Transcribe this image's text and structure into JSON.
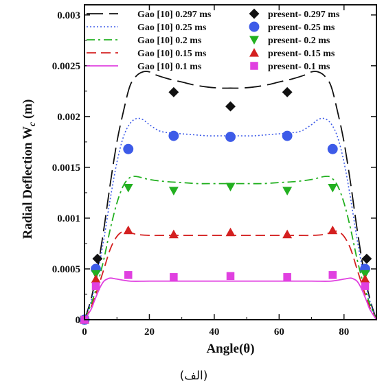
{
  "chart_data": {
    "type": "line",
    "xlabel": "Angle(θ)",
    "ylabel": "Radial Deflection W",
    "ylabel_sub": "c",
    "ylabel_unit": " (m)",
    "xlim": [
      0,
      90
    ],
    "ylim": [
      0,
      0.0031
    ],
    "x_ticks": [
      0,
      20,
      40,
      60,
      80
    ],
    "x_tick_labels": [
      "0",
      "20",
      "40",
      "60",
      "80"
    ],
    "y_ticks": [
      0,
      0.0005,
      0.001,
      0.0015,
      0.002,
      0.0025,
      0.003
    ],
    "y_tick_labels": [
      "0",
      "0.0005",
      "0.001",
      "0.0015",
      "0.002",
      "0.0025",
      "0.003"
    ],
    "grid": false,
    "legend_position": "top",
    "caption": "(الف)",
    "series": [
      {
        "name": "Gao [10] 0.297 ms",
        "kind": "line",
        "style": "long-dash",
        "color": "#111111",
        "x": [
          0,
          2,
          4,
          6,
          8,
          10,
          12,
          14,
          16,
          18,
          20,
          22,
          26,
          30,
          34,
          38,
          42,
          45,
          48,
          52,
          56,
          60,
          64,
          68,
          70,
          72,
          74,
          76,
          78,
          80,
          82,
          84,
          86,
          88,
          90
        ],
        "y": [
          0,
          0.0002,
          0.0005,
          0.0009,
          0.00135,
          0.00175,
          0.00205,
          0.0023,
          0.0024,
          0.00244,
          0.00244,
          0.00241,
          0.00237,
          0.00234,
          0.00231,
          0.00229,
          0.00228,
          0.00228,
          0.00228,
          0.00229,
          0.00231,
          0.00234,
          0.00237,
          0.00241,
          0.00244,
          0.00244,
          0.0024,
          0.0023,
          0.00205,
          0.00175,
          0.00135,
          0.0009,
          0.0005,
          0.0002,
          0
        ]
      },
      {
        "name": "Gao [10] 0.25 ms",
        "kind": "line",
        "style": "dotted",
        "color": "#3d5be8",
        "x": [
          0,
          2,
          4,
          6,
          8,
          10,
          12,
          14,
          16,
          18,
          20,
          23,
          26,
          30,
          34,
          38,
          42,
          45,
          48,
          52,
          56,
          60,
          64,
          67,
          70,
          72,
          74,
          76,
          78,
          80,
          82,
          84,
          86,
          88,
          90
        ],
        "y": [
          0,
          0.00018,
          0.00045,
          0.0008,
          0.0012,
          0.00155,
          0.0018,
          0.00193,
          0.00198,
          0.00197,
          0.00192,
          0.00186,
          0.00184,
          0.00183,
          0.00182,
          0.00181,
          0.00181,
          0.00181,
          0.00181,
          0.00181,
          0.00182,
          0.00183,
          0.00184,
          0.00186,
          0.00192,
          0.00197,
          0.00198,
          0.00193,
          0.0018,
          0.00155,
          0.0012,
          0.0008,
          0.00045,
          0.00018,
          0
        ]
      },
      {
        "name": "Gao [10] 0.2 ms",
        "kind": "line",
        "style": "dash-dot",
        "color": "#22b020",
        "x": [
          0,
          2,
          4,
          6,
          8,
          10,
          12,
          14,
          16,
          20,
          25,
          30,
          35,
          40,
          45,
          50,
          55,
          60,
          65,
          70,
          74,
          76,
          78,
          80,
          82,
          84,
          86,
          88,
          90
        ],
        "y": [
          0,
          0.00015,
          0.00035,
          0.0006,
          0.0009,
          0.00115,
          0.00132,
          0.0014,
          0.00141,
          0.00138,
          0.00136,
          0.00135,
          0.00134,
          0.00134,
          0.00134,
          0.00134,
          0.00134,
          0.00135,
          0.00136,
          0.00138,
          0.00141,
          0.0014,
          0.00132,
          0.00115,
          0.0009,
          0.0006,
          0.00035,
          0.00015,
          0
        ]
      },
      {
        "name": "Gao [10] 0.15 ms",
        "kind": "line",
        "style": "dash",
        "color": "#d42020",
        "x": [
          0,
          2,
          4,
          6,
          8,
          10,
          12,
          14,
          16,
          20,
          25,
          30,
          35,
          40,
          45,
          50,
          55,
          60,
          65,
          70,
          74,
          76,
          78,
          80,
          82,
          84,
          86,
          88,
          90
        ],
        "y": [
          0,
          0.00012,
          0.0003,
          0.0005,
          0.0007,
          0.00082,
          0.00087,
          0.00086,
          0.00084,
          0.00083,
          0.00083,
          0.00083,
          0.00083,
          0.00083,
          0.00083,
          0.00083,
          0.00083,
          0.00083,
          0.00083,
          0.00083,
          0.00084,
          0.00086,
          0.00087,
          0.00082,
          0.0007,
          0.0005,
          0.0003,
          0.00012,
          0
        ]
      },
      {
        "name": "Gao [10] 0.1 ms",
        "kind": "line",
        "style": "solid",
        "color": "#e040e0",
        "x": [
          0,
          2,
          3,
          4,
          5,
          6,
          7,
          8,
          10,
          14,
          20,
          30,
          40,
          45,
          50,
          60,
          70,
          76,
          80,
          82,
          83,
          84,
          85,
          86,
          87,
          88,
          90
        ],
        "y": [
          0,
          0.0001,
          0.00018,
          0.00026,
          0.00033,
          0.00038,
          0.0004,
          0.00041,
          0.0004,
          0.00038,
          0.00038,
          0.00038,
          0.00038,
          0.00038,
          0.00038,
          0.00038,
          0.00038,
          0.00038,
          0.0004,
          0.00041,
          0.0004,
          0.00038,
          0.00033,
          0.00026,
          0.00018,
          0.0001,
          0
        ]
      },
      {
        "name": "present- 0.297 ms",
        "kind": "marker",
        "marker": "diamond",
        "color": "#111111",
        "x": [
          0,
          4,
          27.5,
          45,
          62.5,
          87
        ],
        "y": [
          0,
          0.0006,
          0.00224,
          0.0021,
          0.00224,
          0.0006
        ]
      },
      {
        "name": "present- 0.25 ms",
        "kind": "marker",
        "marker": "circle",
        "color": "#3d5be8",
        "x": [
          0,
          3.5,
          13.5,
          27.5,
          45,
          62.5,
          76.5,
          86.5
        ],
        "y": [
          0,
          0.0005,
          0.00168,
          0.00181,
          0.0018,
          0.00181,
          0.00168,
          0.0005
        ]
      },
      {
        "name": "present- 0.2 ms",
        "kind": "marker",
        "marker": "triangle-down",
        "color": "#22b020",
        "x": [
          0,
          3.5,
          13.5,
          27.5,
          45,
          62.5,
          76.5,
          86.5
        ],
        "y": [
          0,
          0.00045,
          0.0013,
          0.00127,
          0.00131,
          0.00127,
          0.0013,
          0.00045
        ]
      },
      {
        "name": "present- 0.15 ms",
        "kind": "marker",
        "marker": "triangle-up",
        "color": "#d42020",
        "x": [
          0,
          3.5,
          13.5,
          27.5,
          45,
          62.5,
          76.5,
          86.5
        ],
        "y": [
          0,
          0.0004,
          0.00088,
          0.00084,
          0.00086,
          0.00084,
          0.00088,
          0.0004
        ]
      },
      {
        "name": "present- 0.1 ms",
        "kind": "marker",
        "marker": "square",
        "color": "#e040e0",
        "x": [
          0,
          3.5,
          13.5,
          27.5,
          45,
          62.5,
          76.5,
          86.5
        ],
        "y": [
          0,
          0.00033,
          0.00044,
          0.00042,
          0.00043,
          0.00042,
          0.00044,
          0.00033
        ]
      }
    ]
  }
}
